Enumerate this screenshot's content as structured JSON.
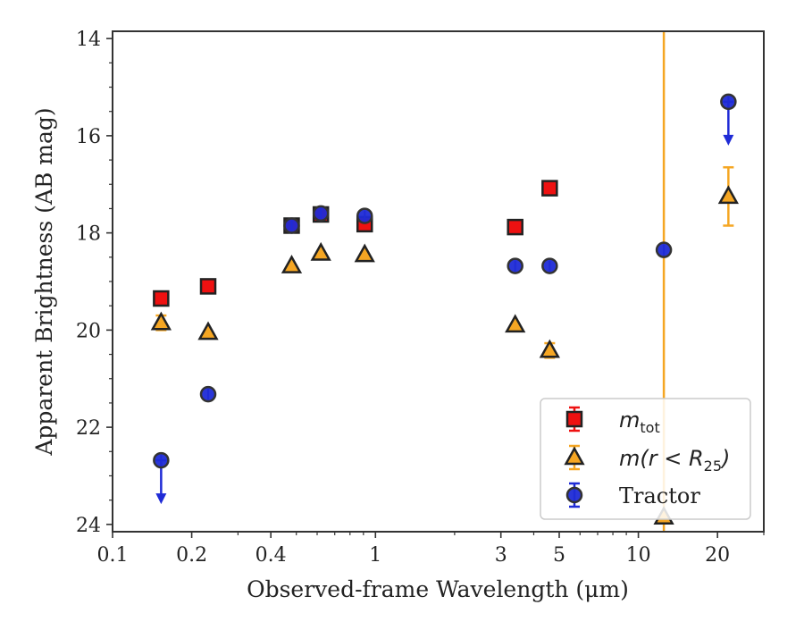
{
  "chart_data": {
    "type": "scatter",
    "title": "",
    "xlabel": "Observed-frame Wavelength (μm)",
    "ylabel": "Apparent Brightness (AB mag)",
    "x_scale": "log",
    "xlim": [
      0.1,
      30
    ],
    "ylim": [
      24.15,
      13.85
    ],
    "y_inverted": true,
    "grid": false,
    "x_ticks": [
      0.1,
      0.2,
      0.4,
      1,
      3,
      5,
      10,
      20
    ],
    "x_tick_labels": [
      "0.1",
      "0.2",
      "0.4",
      "1",
      "3",
      "5",
      "10",
      "20"
    ],
    "y_ticks": [
      14,
      16,
      18,
      20,
      22,
      24
    ],
    "y_tick_labels": [
      "14",
      "16",
      "18",
      "20",
      "22",
      "24"
    ],
    "legend": {
      "placement": "lower-right",
      "entries": [
        {
          "main": "m",
          "sub": "tot",
          "after": ""
        },
        {
          "main": "m(r < R",
          "sub": "25",
          "after": ")"
        },
        {
          "main": "Tractor",
          "sub": "",
          "after": ""
        }
      ]
    },
    "series": [
      {
        "key": "mtot",
        "marker": "square",
        "color": "#ee1111",
        "edge": "#222222",
        "points": [
          {
            "x": 0.153,
            "y": 19.35
          },
          {
            "x": 0.231,
            "y": 19.1
          },
          {
            "x": 0.48,
            "y": 17.85
          },
          {
            "x": 0.62,
            "y": 17.62
          },
          {
            "x": 0.91,
            "y": 17.82
          },
          {
            "x": 3.4,
            "y": 17.88
          },
          {
            "x": 4.6,
            "y": 17.08
          }
        ]
      },
      {
        "key": "mr25",
        "marker": "triangle",
        "color": "#f5a623",
        "edge": "#222222",
        "points": [
          {
            "x": 0.153,
            "y": 19.85,
            "yerr": 0.15
          },
          {
            "x": 0.231,
            "y": 20.05
          },
          {
            "x": 0.48,
            "y": 18.68
          },
          {
            "x": 0.62,
            "y": 18.42
          },
          {
            "x": 0.91,
            "y": 18.45
          },
          {
            "x": 3.4,
            "y": 19.9
          },
          {
            "x": 4.6,
            "y": 20.42,
            "yerr": 0.15
          },
          {
            "x": 12.5,
            "y": 23.85,
            "vertical_error_line": true
          },
          {
            "x": 22.0,
            "y": 17.25,
            "yerr": 0.6
          }
        ]
      },
      {
        "key": "tractor",
        "marker": "circle",
        "color": "#1f2bd6",
        "edge": "#333333",
        "points": [
          {
            "x": 0.153,
            "y": 22.68,
            "upper_limit": true
          },
          {
            "x": 0.231,
            "y": 21.32
          },
          {
            "x": 0.48,
            "y": 17.85
          },
          {
            "x": 0.62,
            "y": 17.6
          },
          {
            "x": 0.91,
            "y": 17.65
          },
          {
            "x": 3.4,
            "y": 18.68
          },
          {
            "x": 4.6,
            "y": 18.68
          },
          {
            "x": 12.5,
            "y": 18.35
          },
          {
            "x": 22.0,
            "y": 15.3,
            "upper_limit": true
          }
        ]
      }
    ]
  }
}
